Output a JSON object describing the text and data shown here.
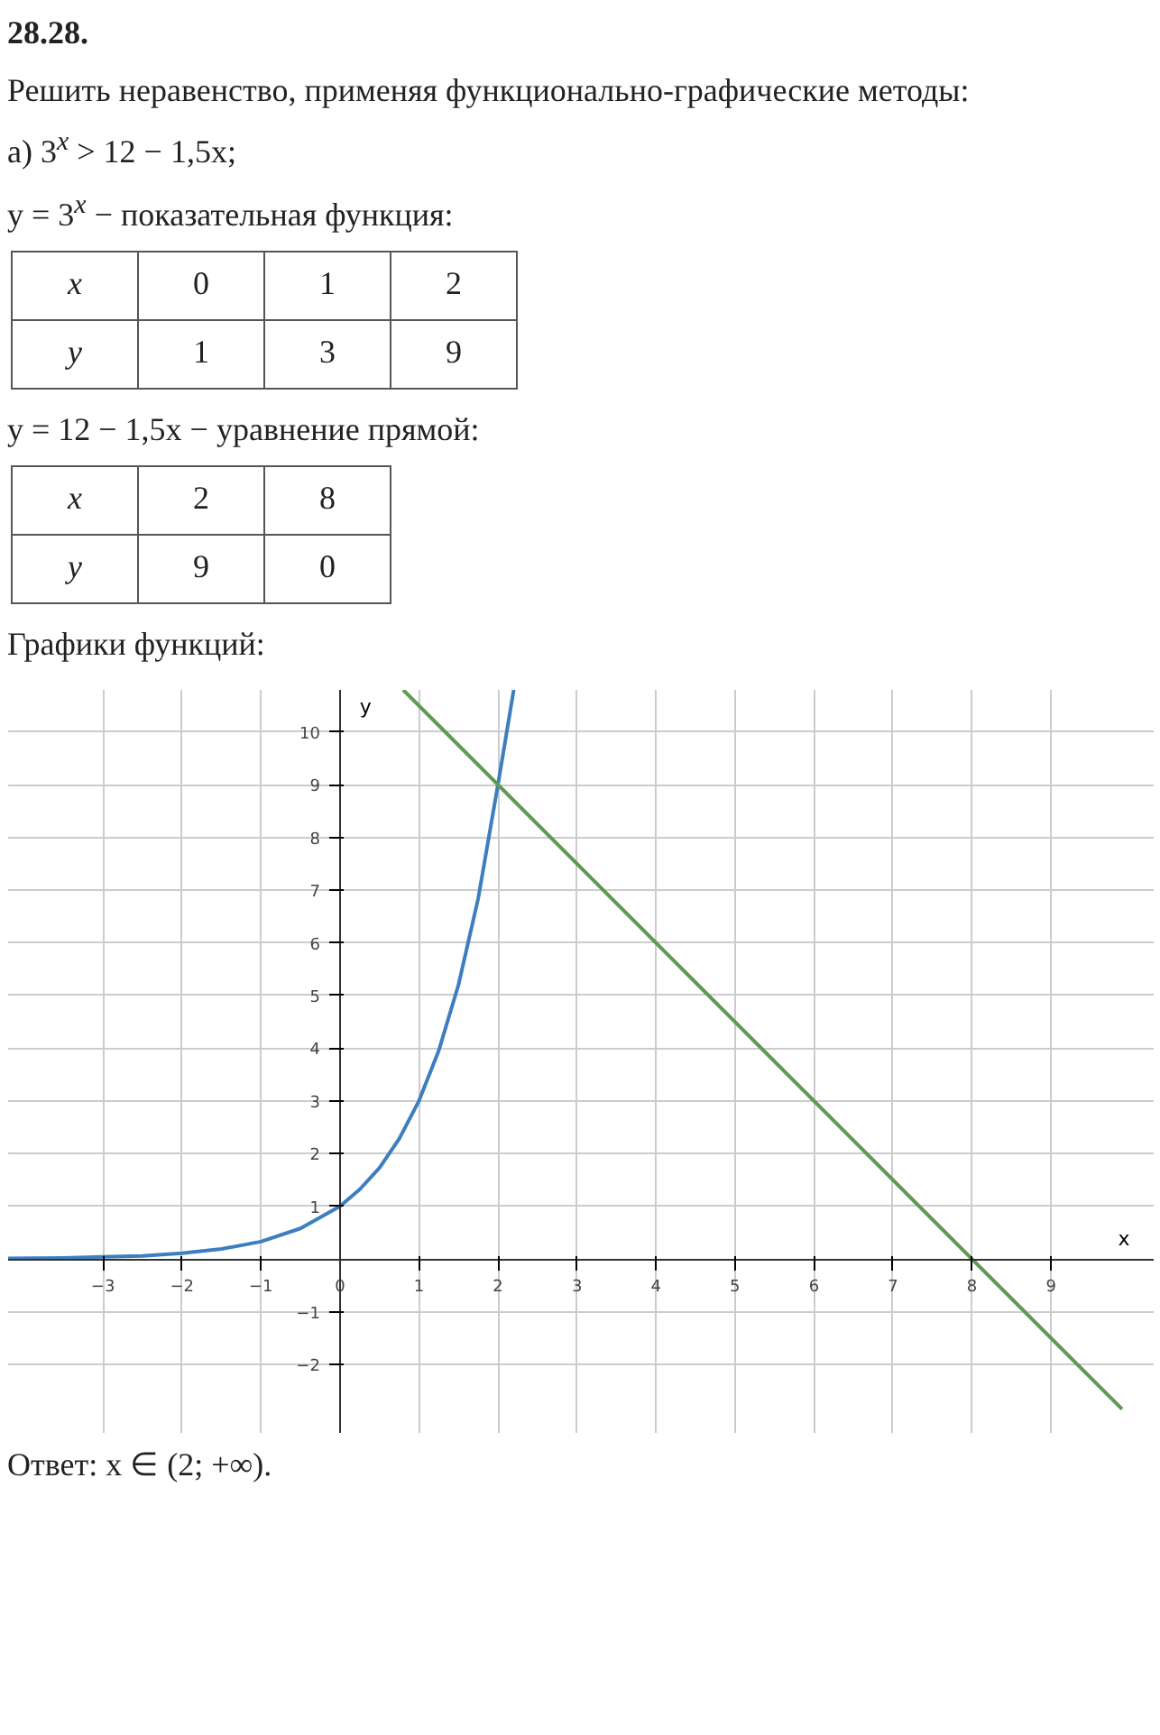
{
  "chart_data": {
    "type": "line",
    "title": "Графики функций:",
    "xlabel": "x",
    "ylabel": "y",
    "annotations": [
      "28.28.",
      "Решить неравенство, применяя функционально-графические методы:",
      "а) 3$^{x}$ > 12 − 1,5x;",
      "y = 3$^{x}$ − показательная функция:",
      "x",
      "0",
      "1",
      "2",
      "y",
      "1",
      "3",
      "9",
      "y = 12 − 1,5x − уравнение прямой:",
      "x",
      "2",
      "8",
      "y",
      "9",
      "0",
      "Ответ: x ∈ (2; +∞)."
    ],
    "series": [
      {
        "color": "#3d7ebf",
        "x": [
          -4.2,
          -3.5,
          -3,
          -2.5,
          -2,
          -1.5,
          -1,
          -0.5,
          0,
          0.25,
          0.5,
          0.75,
          1,
          1.25,
          1.5,
          1.75,
          2,
          2.1,
          2.2
        ],
        "values": [
          0.01,
          0.02,
          0.04,
          0.06,
          0.11,
          0.19,
          0.33,
          0.58,
          1,
          1.32,
          1.73,
          2.28,
          3,
          3.95,
          5.2,
          6.84,
          9,
          9.9,
          10.8
        ]
      },
      {
        "color": "#5e9a4f",
        "x": [
          0.8,
          9.9
        ],
        "values": [
          10.8,
          -2.85
        ]
      }
    ],
    "xlim": [
      -4.2,
      10.3
    ],
    "ylim": [
      -3.3,
      10.8
    ],
    "xticks": [
      -3,
      -2,
      -1,
      0,
      1,
      2,
      3,
      4,
      5,
      6,
      7,
      8,
      9
    ],
    "yticks": [
      -2,
      -1,
      1,
      2,
      3,
      4,
      5,
      6,
      7,
      8,
      9,
      10
    ],
    "grid": true,
    "marker": "none",
    "line_style": "solid"
  }
}
